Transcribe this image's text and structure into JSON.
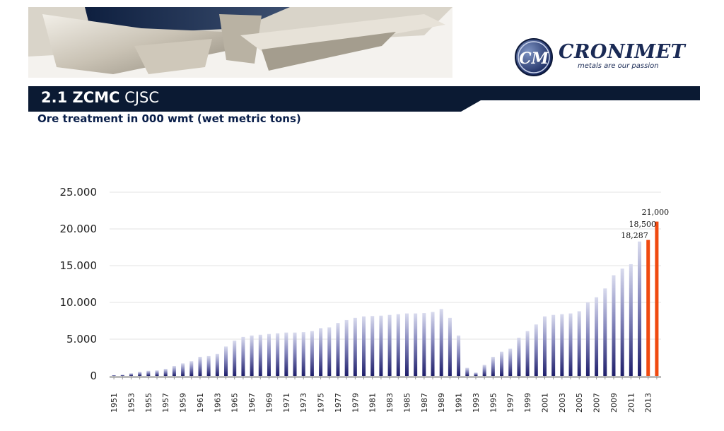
{
  "header": {
    "title_bold": "2.1 ZCMC",
    "title_regular": "CJSC",
    "subtitle": "Ore treatment in 000 wmt (wet metric tons)"
  },
  "brand": {
    "name": "CRONIMET",
    "tagline": "metals are our passion",
    "monogram": "CM"
  },
  "colors": {
    "navy": "#0b1a33",
    "bar_dark": "#23236e",
    "bar_light": "#d6d7ec",
    "highlight": "#f04a10"
  },
  "chart_data": {
    "type": "bar",
    "title": "",
    "xlabel": "",
    "ylabel": "",
    "ylim": [
      0,
      25000
    ],
    "y_ticks": [
      "0",
      "5.000",
      "10.000",
      "15.000",
      "20.000",
      "25.000"
    ],
    "y_tick_values": [
      0,
      5000,
      10000,
      15000,
      20000,
      25000
    ],
    "grid": true,
    "categories": [
      "1951",
      "1952",
      "1953",
      "1954",
      "1955",
      "1956",
      "1957",
      "1958",
      "1959",
      "1960",
      "1961",
      "1962",
      "1963",
      "1964",
      "1965",
      "1966",
      "1967",
      "1968",
      "1969",
      "1970",
      "1971",
      "1972",
      "1973",
      "1974",
      "1975",
      "1976",
      "1977",
      "1978",
      "1979",
      "1980",
      "1981",
      "1982",
      "1983",
      "1984",
      "1985",
      "1986",
      "1987",
      "1988",
      "1989",
      "1990",
      "1991",
      "1992",
      "1993",
      "1994",
      "1995",
      "1996",
      "1997",
      "1998",
      "1999",
      "2000",
      "2001",
      "2002",
      "2003",
      "2004",
      "2005",
      "2006",
      "2007",
      "2008",
      "2009",
      "2010",
      "2011",
      "2012",
      "2013",
      "2014"
    ],
    "x_tick_labels": [
      "1951",
      "1953",
      "1955",
      "1957",
      "1959",
      "1961",
      "1963",
      "1965",
      "1967",
      "1969",
      "1971",
      "1973",
      "1975",
      "1977",
      "1979",
      "1981",
      "1983",
      "1985",
      "1987",
      "1989",
      "1991",
      "1993",
      "1995",
      "1997",
      "1999",
      "2001",
      "2003",
      "2005",
      "2007",
      "2009",
      "2011",
      "2013"
    ],
    "values": [
      100,
      150,
      350,
      550,
      700,
      750,
      950,
      1350,
      1700,
      2000,
      2600,
      2700,
      3000,
      4000,
      4800,
      5300,
      5500,
      5600,
      5700,
      5800,
      5900,
      5900,
      5950,
      6100,
      6500,
      6600,
      7200,
      7600,
      7900,
      8100,
      8150,
      8200,
      8300,
      8400,
      8500,
      8500,
      8550,
      8700,
      9100,
      7900,
      5500,
      1100,
      450,
      1500,
      2600,
      3300,
      3700,
      5200,
      6100,
      7000,
      8100,
      8300,
      8400,
      8500,
      8800,
      10000,
      10700,
      11900,
      13700,
      14600,
      15200,
      18287,
      18500,
      21000
    ],
    "highlight_categories": [
      "2013",
      "2014"
    ],
    "data_labels": [
      {
        "category": "2012",
        "text": "18,287"
      },
      {
        "category": "2013",
        "text": "18,500"
      },
      {
        "category": "2014",
        "text": "21,000"
      }
    ]
  }
}
